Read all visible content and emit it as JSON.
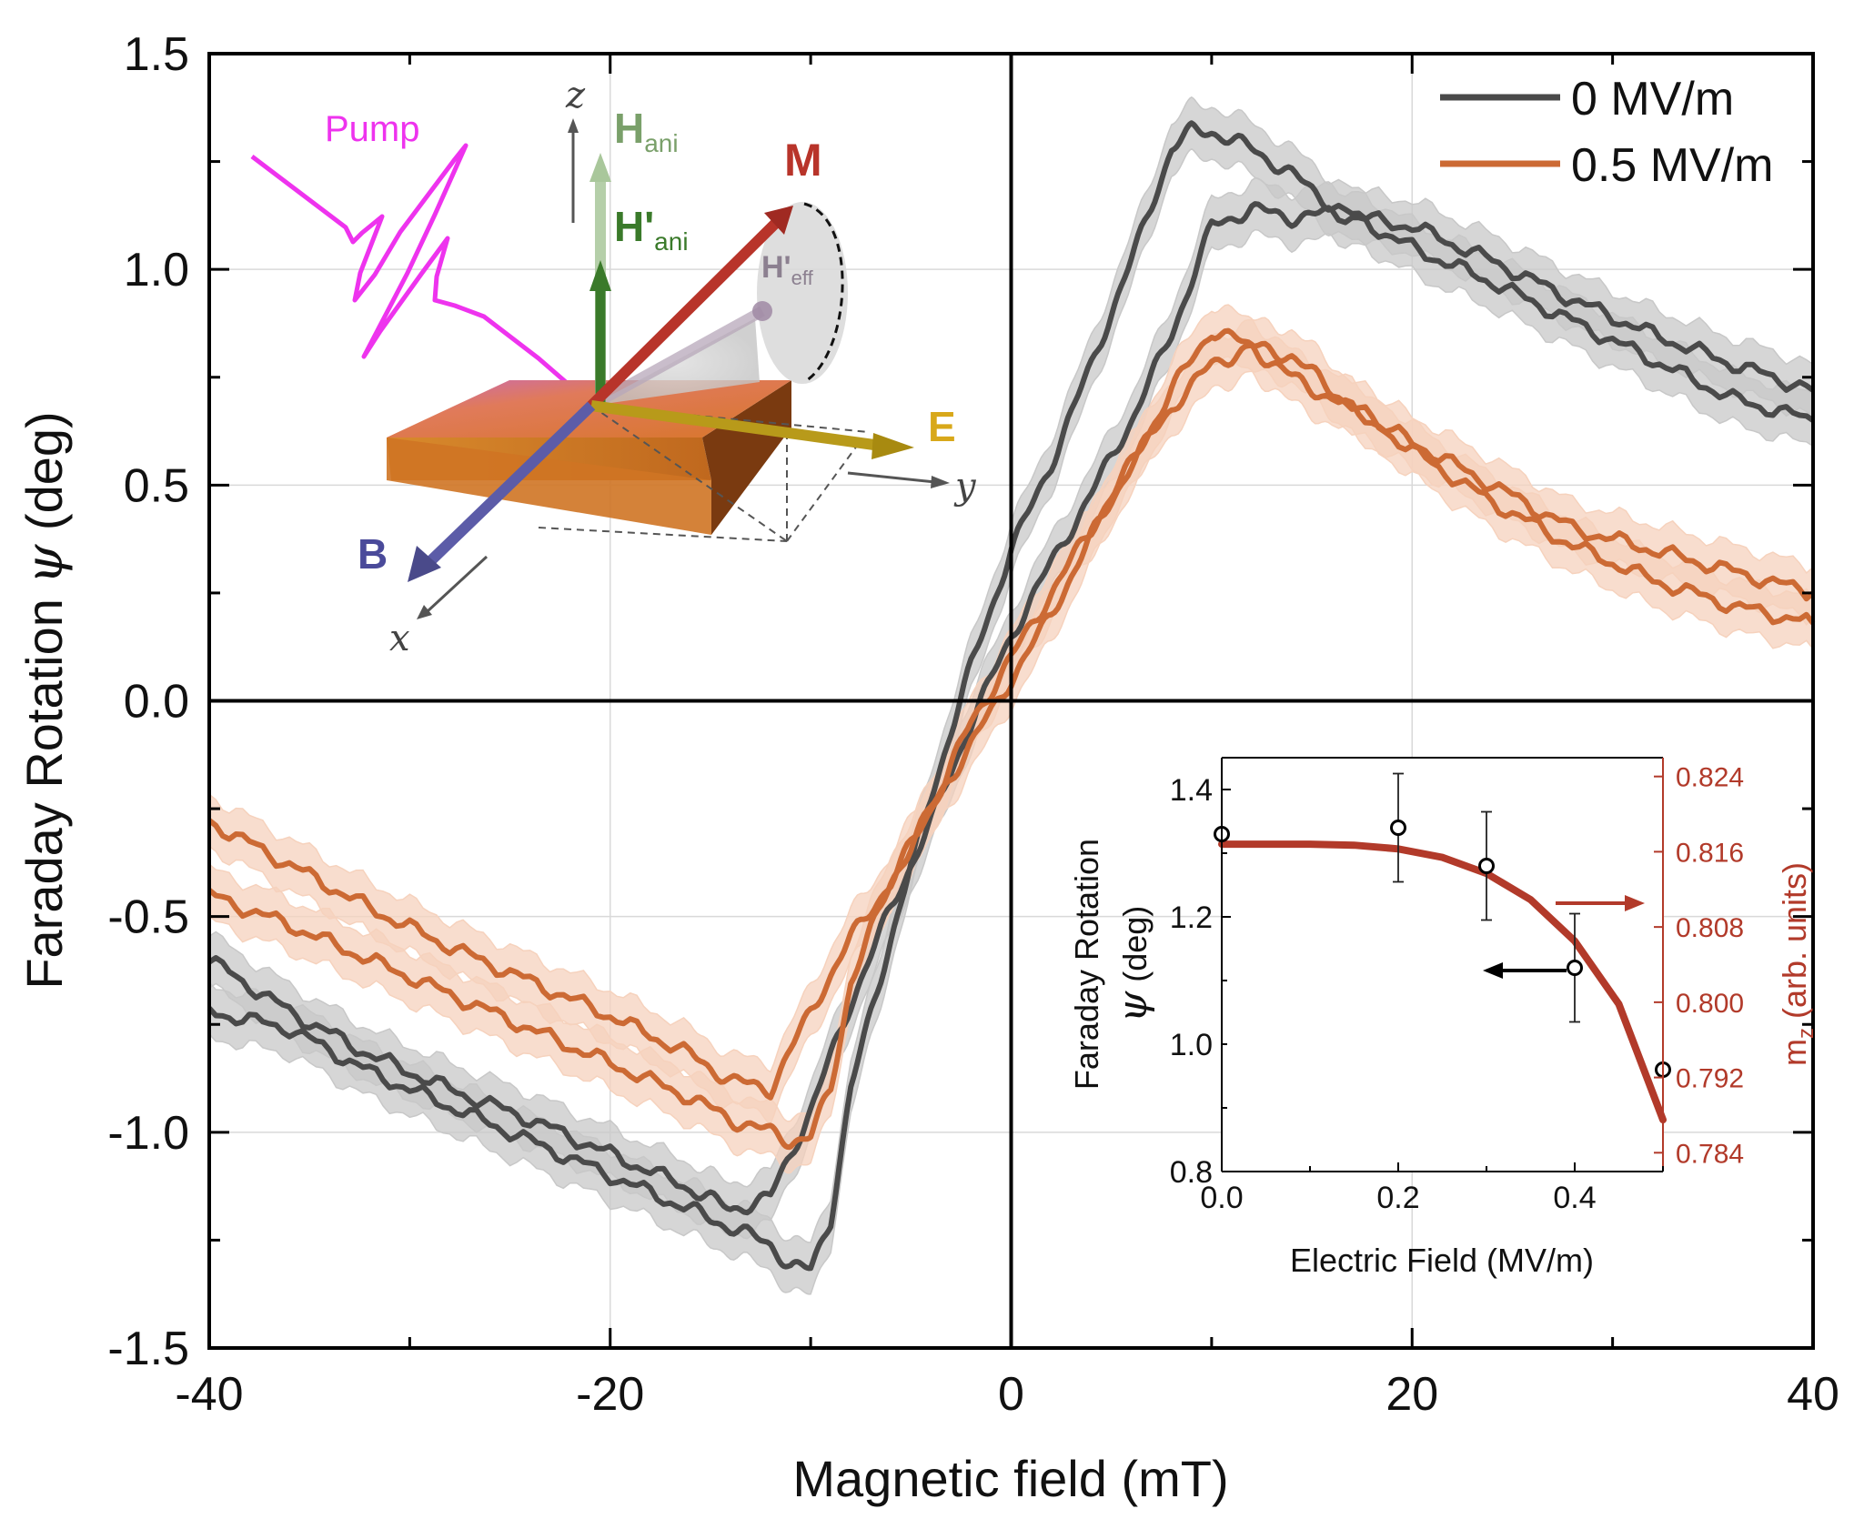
{
  "chart_data": [
    {
      "type": "line",
      "title": "",
      "xlabel": "Magnetic field (mT)",
      "ylabel_prefix": "Faraday Rotation ",
      "ylabel_symbol": "ψ",
      "ylabel_suffix": " (deg)",
      "xlim": [
        -40,
        40
      ],
      "ylim": [
        -1.5,
        1.5
      ],
      "xticks": [
        -40,
        -20,
        0,
        20,
        40
      ],
      "xtick_labels": [
        "-40",
        "-20",
        "0",
        "20",
        "40"
      ],
      "yticks": [
        -1.5,
        -1.0,
        -0.5,
        0.0,
        0.5,
        1.0,
        1.5
      ],
      "ytick_labels": [
        "-1.5",
        "-1.0",
        "-0.5",
        "0.0",
        "0.5",
        "1.0",
        "1.5"
      ],
      "grid": true,
      "legend_position": "top-right",
      "legend": [
        "0 MV/m",
        "0.5 MV/m"
      ],
      "series": [
        {
          "name": "0 MV/m",
          "color": "#4a4a4a",
          "band_color": "#c8c8c8",
          "band_halfwidth": 0.06,
          "branches": [
            {
              "x": [
                -40,
                -36,
                -32,
                -28,
                -24,
                -20,
                -16,
                -14,
                -12,
                -11,
                -10,
                -9,
                -8,
                -6,
                -4,
                -2,
                0,
                2,
                4,
                6,
                8,
                9,
                10,
                12,
                14,
                16,
                20,
                24,
                28,
                32,
                36,
                40
              ],
              "y": [
                -0.72,
                -0.76,
                -0.86,
                -0.94,
                -1.02,
                -1.1,
                -1.18,
                -1.22,
                -1.26,
                -1.31,
                -1.32,
                -1.2,
                -0.9,
                -0.55,
                -0.22,
                0.08,
                0.35,
                0.55,
                0.78,
                1.02,
                1.28,
                1.32,
                1.32,
                1.28,
                1.22,
                1.15,
                1.05,
                0.97,
                0.88,
                0.79,
                0.7,
                0.65
              ]
            },
            {
              "x": [
                -40,
                -36,
                -32,
                -28,
                -24,
                -20,
                -16,
                -14,
                -12,
                -10,
                -8,
                -6,
                -4,
                -2,
                0,
                2,
                4,
                6,
                8,
                10,
                12,
                14,
                16,
                20,
                24,
                28,
                32,
                36,
                40
              ],
              "y": [
                -0.6,
                -0.72,
                -0.82,
                -0.9,
                -0.97,
                -1.05,
                -1.13,
                -1.18,
                -1.15,
                -0.95,
                -0.7,
                -0.48,
                -0.28,
                -0.05,
                0.15,
                0.32,
                0.48,
                0.65,
                0.85,
                1.1,
                1.14,
                1.12,
                1.13,
                1.1,
                1.02,
                0.93,
                0.85,
                0.78,
                0.72
              ]
            }
          ]
        },
        {
          "name": "0.5 MV/m",
          "color": "#cc6a34",
          "band_color": "#f6d2bd",
          "band_halfwidth": 0.06,
          "branches": [
            {
              "x": [
                -40,
                -36,
                -32,
                -28,
                -24,
                -20,
                -16,
                -14,
                -12,
                -10,
                -8,
                -6,
                -4,
                -2,
                0,
                2,
                4,
                6,
                8,
                10,
                12,
                14,
                16,
                20,
                24,
                28,
                32,
                36,
                40
              ],
              "y": [
                -0.28,
                -0.38,
                -0.48,
                -0.57,
                -0.65,
                -0.73,
                -0.82,
                -0.88,
                -0.9,
                -0.72,
                -0.55,
                -0.42,
                -0.25,
                -0.05,
                0.1,
                0.25,
                0.4,
                0.55,
                0.72,
                0.86,
                0.82,
                0.75,
                0.7,
                0.6,
                0.5,
                0.4,
                0.35,
                0.3,
                0.25
              ]
            },
            {
              "x": [
                -40,
                -36,
                -32,
                -28,
                -24,
                -20,
                -16,
                -14,
                -12,
                -11,
                -10,
                -9,
                -8,
                -6,
                -4,
                -2,
                0,
                2,
                4,
                6,
                8,
                10,
                12,
                14,
                16,
                20,
                24,
                28,
                32,
                36,
                40
              ],
              "y": [
                -0.45,
                -0.52,
                -0.6,
                -0.68,
                -0.76,
                -0.84,
                -0.92,
                -0.97,
                -1.0,
                -1.02,
                -1.01,
                -0.9,
                -0.65,
                -0.42,
                -0.25,
                -0.1,
                0.05,
                0.2,
                0.38,
                0.55,
                0.68,
                0.78,
                0.82,
                0.8,
                0.72,
                0.58,
                0.46,
                0.36,
                0.28,
                0.22,
                0.18
              ]
            }
          ]
        }
      ]
    },
    {
      "type": "scatter",
      "xlabel": "Electric Field (MV/m)",
      "ylabel_line1": "Faraday Rotation",
      "ylabel_symbol": "ψ",
      "ylabel_suffix": " (deg)",
      "y2label_prefix": "m",
      "y2label_sub": "z",
      "y2label_suffix": " (arb. units)",
      "xlim": [
        0.0,
        0.5
      ],
      "ylim": [
        0.8,
        1.45
      ],
      "y2lim": [
        0.782,
        0.826
      ],
      "xticks": [
        0.0,
        0.2,
        0.4
      ],
      "xtick_labels": [
        "0.0",
        "0.2",
        "0.4"
      ],
      "yticks": [
        0.8,
        1.0,
        1.2,
        1.4
      ],
      "ytick_labels": [
        "0.8",
        "1.0",
        "1.2",
        "1.4"
      ],
      "y2ticks": [
        0.784,
        0.792,
        0.8,
        0.808,
        0.816,
        0.824
      ],
      "y2tick_labels": [
        "0.784",
        "0.792",
        "0.800",
        "0.808",
        "0.816",
        "0.824"
      ],
      "points": {
        "x": [
          0.0,
          0.2,
          0.3,
          0.4,
          0.5
        ],
        "y": [
          1.33,
          1.34,
          1.28,
          1.12,
          0.96
        ],
        "err": [
          0.0,
          0.085,
          0.085,
          0.085,
          0.0
        ]
      },
      "curve": {
        "name": "m_z",
        "color": "#b23a2a",
        "x": [
          0.0,
          0.05,
          0.1,
          0.15,
          0.2,
          0.25,
          0.3,
          0.35,
          0.4,
          0.45,
          0.5
        ],
        "y2": [
          0.8168,
          0.8168,
          0.8168,
          0.8167,
          0.8163,
          0.8154,
          0.8137,
          0.8109,
          0.8065,
          0.7998,
          0.7875
        ]
      }
    }
  ],
  "schematic": {
    "labels": {
      "pump": "Pump",
      "z_axis": "z",
      "y_axis": "y",
      "x_axis": "x",
      "h_ani": "H",
      "h_ani_sub": "ani",
      "h_ani_prime": "H'",
      "h_ani_prime_sub": "ani",
      "m": "M",
      "h_eff": "H'",
      "h_eff_sub": "eff",
      "e": "E",
      "b": "B"
    },
    "colors": {
      "pump": "#ee33ee",
      "h_ani": "#7aa06a",
      "h_ani_prime": "#3a7a2a",
      "m": "#b8342a",
      "h_eff": "#a79aaa",
      "e": "#c8a21a",
      "b": "#4a4a9a",
      "slab": "#d07a30"
    }
  }
}
